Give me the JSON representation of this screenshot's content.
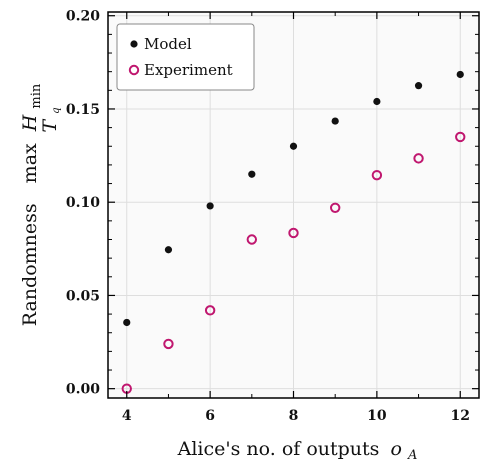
{
  "chart_data": {
    "type": "scatter",
    "xlabel": "Alice's no. of outputs",
    "xlabel_symbol": "o",
    "xlabel_subscript": "A",
    "ylabel": "Randomness",
    "ylabel_max": "max",
    "ylabel_H": "H",
    "ylabel_sub": "min",
    "ylabel_under": "T",
    "ylabel_under_sub": "q",
    "xlim": [
      3.55,
      12.45
    ],
    "ylim": [
      -0.005,
      0.202
    ],
    "xticks": [
      "4",
      "6",
      "8",
      "10",
      "12"
    ],
    "xtick_values": [
      4,
      6,
      8,
      10,
      12
    ],
    "yticks": [
      "0.00",
      "0.05",
      "0.10",
      "0.15",
      "0.20"
    ],
    "ytick_values": [
      0.0,
      0.05,
      0.1,
      0.15,
      0.2
    ],
    "grid": true,
    "legend_position": "top-left",
    "series": [
      {
        "name": "Model",
        "marker": "filled-circle",
        "color": "#111111",
        "x": [
          4,
          5,
          6,
          7,
          8,
          9,
          10,
          11,
          12
        ],
        "y": [
          0.0355,
          0.0745,
          0.098,
          0.115,
          0.13,
          0.1435,
          0.154,
          0.1625,
          0.1685
        ]
      },
      {
        "name": "Experiment",
        "marker": "open-circle",
        "color": "#c0176f",
        "x": [
          4,
          5,
          6,
          7,
          8,
          9,
          10,
          11,
          12
        ],
        "y": [
          0.0,
          0.024,
          0.042,
          0.08,
          0.0835,
          0.097,
          0.1145,
          0.1235,
          0.135
        ]
      }
    ]
  }
}
